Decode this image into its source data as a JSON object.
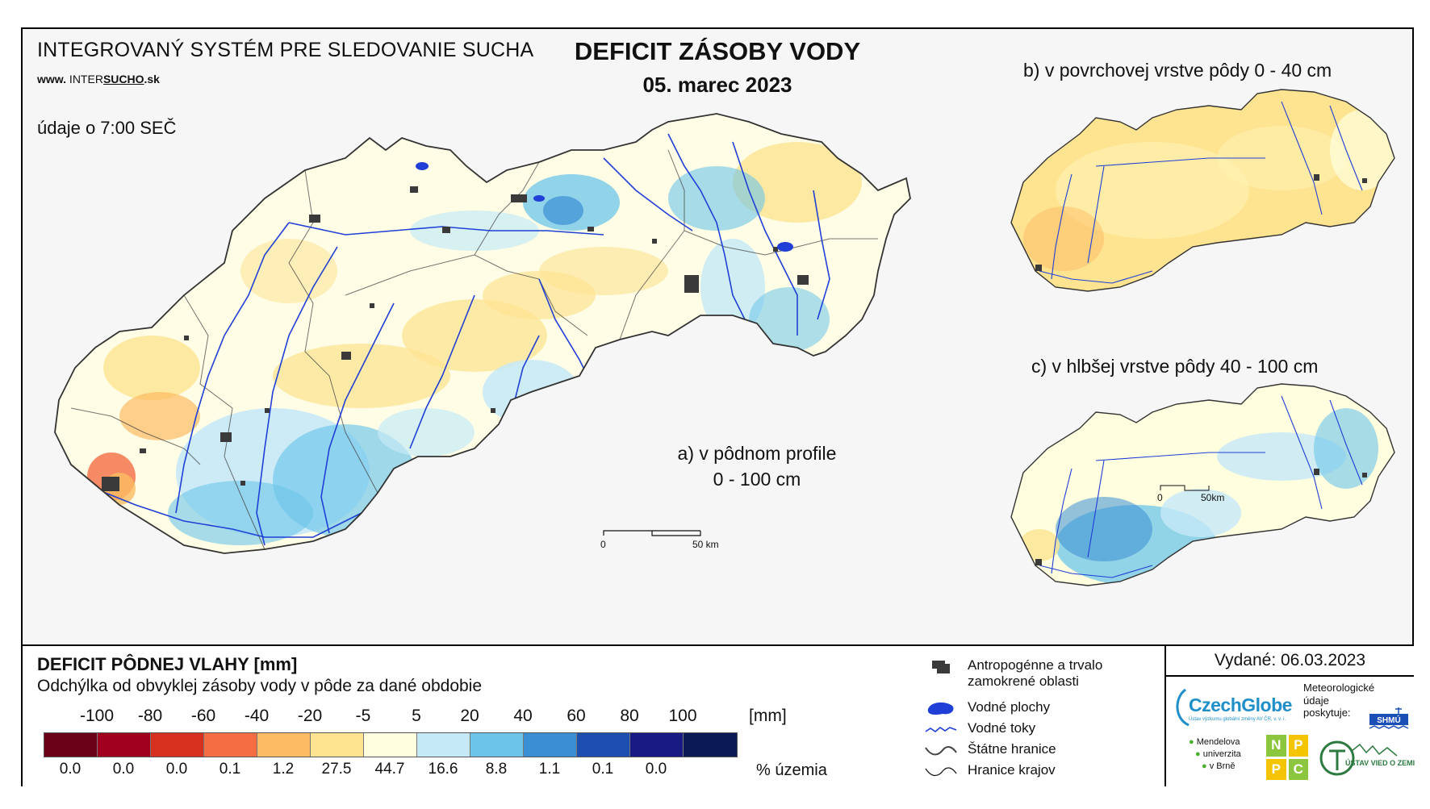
{
  "header": {
    "system_title": "INTEGROVANÝ SYSTÉM PRE SLEDOVANIE SUCHA",
    "website_prefix": "www.",
    "website_part1": " INTER",
    "website_part2": "SUCHO",
    "website_part3": ".sk",
    "main_title": "DEFICIT ZÁSOBY VODY",
    "date": "05. marec 2023",
    "data_time": "údaje o 7:00 SEČ"
  },
  "panels": {
    "a_line1": "a) v pôdnom profile",
    "a_line2": "0 - 100 cm",
    "b": "b) v povrchovej vrstve pôdy 0 - 40 cm",
    "c": "c) v hlbšej vrstve pôdy 40 - 100 cm"
  },
  "scalebars": {
    "main": {
      "start": "0",
      "end": "50 km"
    },
    "small": {
      "start": "0",
      "end": "50km"
    }
  },
  "legend": {
    "title": "DEFICIT PÔDNEJ VLAHY [mm]",
    "subtitle": "Odchýlka od obvyklej zásoby vody v pôde za dané obdobie",
    "unit": "[mm]",
    "percent_label": "% územia",
    "ticks": [
      "-100",
      "-80",
      "-60",
      "-40",
      "-20",
      "-5",
      "5",
      "20",
      "40",
      "60",
      "80",
      "100"
    ],
    "classes": [
      {
        "color": "#6b0019",
        "percent": "0.0"
      },
      {
        "color": "#a0001e",
        "percent": "0.0"
      },
      {
        "color": "#d7301f",
        "percent": "0.0"
      },
      {
        "color": "#f46d43",
        "percent": "0.1"
      },
      {
        "color": "#fdbb63",
        "percent": "1.2"
      },
      {
        "color": "#fee391",
        "percent": "27.5"
      },
      {
        "color": "#ffffe0",
        "percent": "44.7"
      },
      {
        "color": "#c6e9f7",
        "percent": "16.6"
      },
      {
        "color": "#6cc4ea",
        "percent": "8.8"
      },
      {
        "color": "#3a8ed4",
        "percent": "1.1"
      },
      {
        "color": "#1c4fb0",
        "percent": "0.1"
      },
      {
        "color": "#1a1a85",
        "percent": "0.0"
      },
      {
        "color": "#0b1a55",
        "percent": ""
      }
    ],
    "symbols": [
      {
        "icon": "urban-area-icon",
        "line1": "Antropogénne a trvalo",
        "line2": "zamokrené oblasti"
      },
      {
        "icon": "water-body-icon",
        "line1": "Vodné plochy",
        "line2": ""
      },
      {
        "icon": "river-icon",
        "line1": "Vodné toky",
        "line2": ""
      },
      {
        "icon": "state-border-icon",
        "line1": "Štátne hranice",
        "line2": ""
      },
      {
        "icon": "region-border-icon",
        "line1": "Hranice krajov",
        "line2": ""
      }
    ]
  },
  "credits": {
    "issued": "Vydané: 06.03.2023",
    "czechglobe": "CzechGlobe",
    "czechglobe_sub": "Ústav výzkumu globální změny AV ČR, v. v. i.",
    "meteo_line1": "Meteorologické",
    "meteo_line2": "údaje",
    "meteo_line3": "poskytuje:",
    "shmu": "SHMÚ",
    "mendel_line1": "Mendelova",
    "mendel_line2": "univerzita",
    "mendel_line3": "v Brně",
    "npc": [
      "N",
      "P",
      "P",
      "C"
    ],
    "uvz": "ÚSTAV VIED O ZEMI"
  },
  "colors": {
    "river": "#1f3fd6",
    "urban": "#3a3a3a",
    "border": "#333333"
  }
}
